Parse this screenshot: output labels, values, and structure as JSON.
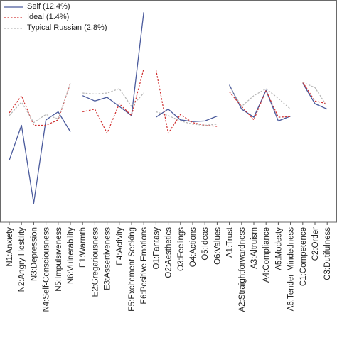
{
  "chart_data": {
    "type": "line",
    "ylim": [
      -1.6,
      2.5
    ],
    "grid": false,
    "legend_position": "top-left",
    "categories": [
      "N1:Anxiety",
      "N2:Angry Hostility",
      "N3:Depression",
      "N4:Self-Consciousness",
      "N5:Impulsiveness",
      "N6:Vulnerability",
      "E1:Warmth",
      "E2:Gregariousness",
      "E3:Assertiveness",
      "E4:Activity",
      "E5:Excitement Seeking",
      "E6:Positive Emotions",
      "O1:Fantasy",
      "O2:Aesthetics",
      "O3:Feelings",
      "O4:Actions",
      "O5:Ideas",
      "O6:Values",
      "A1:Trust",
      "A2:Straightforwardness",
      "A3:Altruism",
      "A4:Compliance",
      "A5:Modesty",
      "A6:Tender-Mindedness",
      "C1:Competence",
      "C2:Order",
      "C3:Dutifulness"
    ],
    "groups": [
      [
        0,
        5
      ],
      [
        6,
        11
      ],
      [
        12,
        17
      ],
      [
        18,
        23
      ],
      [
        24,
        26
      ]
    ],
    "series": [
      {
        "name": "Self (12.4%)",
        "color": "#4a5a9c",
        "dash": "solid",
        "values": [
          -0.45,
          0.2,
          -1.25,
          0.3,
          0.45,
          0.08,
          0.75,
          0.65,
          0.72,
          0.55,
          0.38,
          2.3,
          0.35,
          0.5,
          0.3,
          0.27,
          0.28,
          0.37,
          0.95,
          0.5,
          0.35,
          0.85,
          0.28,
          0.37,
          0.98,
          0.6,
          0.5
        ]
      },
      {
        "name": "Ideal (1.4%)",
        "color": "#d03030",
        "dash": "dotted",
        "values": [
          0.43,
          0.75,
          0.2,
          0.2,
          0.3,
          0.98,
          0.45,
          0.5,
          0.05,
          0.6,
          0.38,
          1.25,
          1.23,
          0.05,
          0.4,
          0.25,
          0.2,
          0.18,
          0.82,
          0.55,
          0.3,
          0.85,
          0.35,
          0.36,
          1.0,
          0.65,
          0.6
        ]
      },
      {
        "name": "Typical Russian (2.8%)",
        "color": "#b4b4b4",
        "dash": "dotted",
        "values": [
          0.38,
          0.63,
          0.25,
          0.4,
          0.32,
          0.98,
          0.8,
          0.78,
          0.8,
          0.88,
          0.55,
          0.8,
          0.45,
          0.38,
          0.28,
          0.22,
          0.2,
          0.22,
          0.93,
          0.55,
          0.75,
          0.88,
          0.7,
          0.5,
          1.0,
          0.9,
          0.55
        ]
      }
    ]
  }
}
